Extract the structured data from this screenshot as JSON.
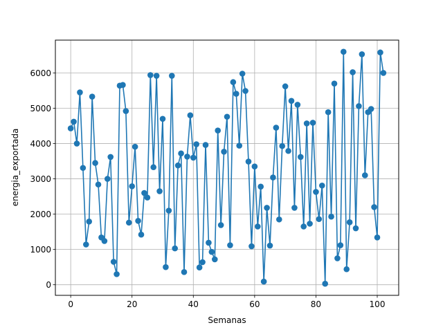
{
  "chart_data": {
    "type": "line",
    "xlabel": "Semanas",
    "ylabel": "energia_exportada",
    "xlim": [
      -5,
      107
    ],
    "ylim": [
      -300,
      6930
    ],
    "xticks": [
      0,
      20,
      40,
      60,
      80,
      100
    ],
    "yticks": [
      0,
      1000,
      2000,
      3000,
      4000,
      5000,
      6000
    ],
    "grid": true,
    "marker": "circle",
    "colors": {
      "series": "#1f77b4",
      "grid": "#b0b0b0",
      "axis": "#000000"
    },
    "series": [
      {
        "x": [
          0,
          1,
          2,
          3,
          4,
          5,
          6,
          7,
          8,
          9,
          10,
          11,
          12,
          13,
          14,
          15,
          16,
          17,
          18,
          19,
          20,
          21,
          22,
          23,
          24,
          25,
          26,
          27,
          28,
          29,
          30,
          31,
          32,
          33,
          34,
          35,
          36,
          37,
          38,
          39,
          40,
          41,
          42,
          43,
          44,
          45,
          46,
          47,
          48,
          49,
          50,
          51,
          52,
          53,
          54,
          55,
          56,
          57,
          58,
          59,
          60,
          61,
          62,
          63,
          64,
          65,
          66,
          67,
          68,
          69,
          70,
          71,
          72,
          73,
          74,
          75,
          76,
          77,
          78,
          79,
          80,
          81,
          82,
          83,
          84,
          85,
          86,
          87,
          88,
          89,
          90,
          91,
          92,
          93,
          94,
          95,
          96,
          97,
          98,
          99,
          100,
          101,
          102
        ],
        "values": [
          4430,
          4620,
          4000,
          5450,
          3310,
          1140,
          1790,
          5330,
          3450,
          2840,
          1340,
          1240,
          3000,
          3620,
          650,
          300,
          5640,
          5660,
          4920,
          1760,
          2790,
          3910,
          1810,
          1420,
          2600,
          2470,
          5940,
          3330,
          5920,
          2650,
          4700,
          500,
          2100,
          5920,
          1030,
          3380,
          3720,
          360,
          3630,
          4800,
          3600,
          3980,
          490,
          640,
          3960,
          1190,
          930,
          720,
          4370,
          1690,
          3770,
          4760,
          1120,
          5740,
          5410,
          3940,
          5980,
          5490,
          3490,
          1090,
          3350,
          1650,
          2780,
          90,
          2180,
          1110,
          3040,
          4450,
          1850,
          3930,
          5620,
          3790,
          5210,
          2180,
          5100,
          3620,
          1650,
          4570,
          1730,
          4590,
          2630,
          1860,
          2810,
          30,
          4890,
          1930,
          5700,
          750,
          1120,
          6600,
          440,
          1770,
          6020,
          1600,
          5060,
          6530,
          3100,
          4890,
          4980,
          2200,
          1340,
          6580,
          6000
        ]
      }
    ]
  }
}
